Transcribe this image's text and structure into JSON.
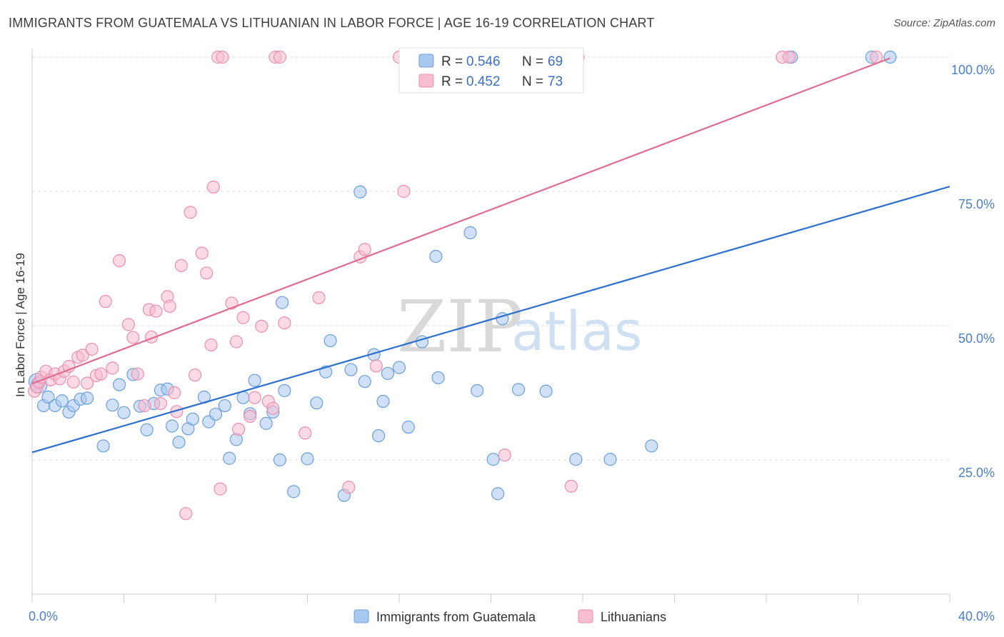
{
  "title": "IMMIGRANTS FROM GUATEMALA VS LITHUANIAN IN LABOR FORCE | AGE 16-19 CORRELATION CHART",
  "source": "Source: ZipAtlas.com",
  "watermark": {
    "part1": "ZIP",
    "part2": "atlas"
  },
  "colors": {
    "blue_fill": "#a9c8f0",
    "blue_stroke": "#6b9fdc",
    "blue_line": "#2b6fcf",
    "pink_fill": "#f7bcd0",
    "pink_stroke": "#ec8fae",
    "pink_line": "#e06b94",
    "grid": "#dddddd",
    "axis_text": "#4a7fc9"
  },
  "legend": {
    "rows": [
      {
        "r_label": "R = ",
        "r_value": "0.546",
        "n_label": "N = ",
        "n_value": "69"
      },
      {
        "r_label": "R = ",
        "r_value": "0.452",
        "n_label": "N = ",
        "n_value": "73"
      }
    ]
  },
  "chart_data": {
    "type": "scatter",
    "xlabel": "",
    "ylabel": "In Labor Force | Age 16-19",
    "xlim": [
      0,
      40
    ],
    "ylim": [
      0,
      100
    ],
    "x_tick_labels": [
      {
        "value": 0,
        "label": "0.0%"
      },
      {
        "value": 40,
        "label": "40.0%"
      }
    ],
    "y_tick_labels": [
      {
        "value": 25,
        "label": "25.0%"
      },
      {
        "value": 50,
        "label": "50.0%"
      },
      {
        "value": 75,
        "label": "75.0%"
      },
      {
        "value": 100,
        "label": "100.0%"
      }
    ],
    "grid": true,
    "legend_position": "top-center",
    "series": [
      {
        "name": "Immigrants from Guatemala",
        "color": "#a9c8f0",
        "trend": {
          "x": [
            0,
            40
          ],
          "y": [
            26.4,
            75.9
          ]
        },
        "points": [
          [
            0.2,
            39.6
          ],
          [
            0.3,
            38.9
          ],
          [
            0.5,
            35.1
          ],
          [
            0.7,
            36.7
          ],
          [
            1.0,
            35.1
          ],
          [
            1.3,
            36.0
          ],
          [
            1.6,
            33.9
          ],
          [
            1.8,
            35.1
          ],
          [
            2.1,
            36.3
          ],
          [
            2.4,
            36.5
          ],
          [
            3.1,
            27.6
          ],
          [
            3.5,
            35.2
          ],
          [
            3.8,
            39.0
          ],
          [
            4.0,
            33.8
          ],
          [
            4.4,
            40.9
          ],
          [
            4.7,
            35.0
          ],
          [
            5.0,
            30.6
          ],
          [
            5.3,
            35.5
          ],
          [
            5.6,
            38.0
          ],
          [
            5.9,
            38.2
          ],
          [
            6.1,
            31.3
          ],
          [
            6.4,
            28.3
          ],
          [
            6.8,
            30.8
          ],
          [
            7.0,
            32.6
          ],
          [
            7.5,
            36.7
          ],
          [
            7.7,
            32.1
          ],
          [
            8.0,
            33.5
          ],
          [
            8.4,
            35.1
          ],
          [
            8.6,
            25.3
          ],
          [
            8.9,
            28.8
          ],
          [
            9.2,
            36.6
          ],
          [
            9.5,
            33.6
          ],
          [
            9.7,
            39.8
          ],
          [
            10.2,
            31.8
          ],
          [
            10.5,
            33.9
          ],
          [
            10.8,
            25.0
          ],
          [
            10.9,
            54.3
          ],
          [
            11.0,
            37.9
          ],
          [
            11.4,
            19.1
          ],
          [
            12.0,
            25.2
          ],
          [
            12.4,
            35.6
          ],
          [
            13.0,
            47.2
          ],
          [
            12.8,
            41.4
          ],
          [
            13.6,
            18.4
          ],
          [
            13.9,
            41.8
          ],
          [
            14.3,
            74.9
          ],
          [
            14.5,
            39.6
          ],
          [
            14.9,
            44.6
          ],
          [
            15.1,
            29.5
          ],
          [
            15.3,
            35.9
          ],
          [
            15.5,
            41.1
          ],
          [
            16.0,
            42.2
          ],
          [
            16.4,
            31.1
          ],
          [
            17.0,
            47.0
          ],
          [
            17.6,
            62.9
          ],
          [
            17.7,
            40.3
          ],
          [
            19.1,
            67.3
          ],
          [
            19.4,
            37.9
          ],
          [
            20.1,
            25.1
          ],
          [
            20.3,
            18.7
          ],
          [
            20.5,
            51.3
          ],
          [
            21.2,
            38.1
          ],
          [
            22.4,
            37.8
          ],
          [
            23.7,
            25.1
          ],
          [
            25.2,
            25.1
          ],
          [
            27.0,
            27.6
          ],
          [
            33.1,
            100
          ],
          [
            36.6,
            100
          ],
          [
            37.4,
            100
          ]
        ]
      },
      {
        "name": "Lithuanians",
        "color": "#f7bcd0",
        "trend": {
          "x": [
            0,
            37.4
          ],
          "y": [
            39.2,
            99.8
          ]
        },
        "points": [
          [
            0.1,
            37.8
          ],
          [
            0.2,
            38.6
          ],
          [
            0.3,
            39.5
          ],
          [
            0.4,
            40.4
          ],
          [
            0.6,
            41.5
          ],
          [
            0.8,
            39.9
          ],
          [
            1.0,
            41.0
          ],
          [
            1.2,
            40.1
          ],
          [
            1.4,
            41.5
          ],
          [
            1.6,
            42.4
          ],
          [
            1.8,
            39.5
          ],
          [
            2.0,
            44.1
          ],
          [
            2.2,
            44.5
          ],
          [
            2.4,
            39.3
          ],
          [
            2.6,
            45.6
          ],
          [
            2.8,
            40.7
          ],
          [
            3.0,
            41.0
          ],
          [
            3.2,
            54.5
          ],
          [
            3.5,
            42.1
          ],
          [
            3.8,
            62.1
          ],
          [
            4.2,
            50.2
          ],
          [
            4.4,
            47.8
          ],
          [
            4.6,
            41.0
          ],
          [
            4.9,
            35.1
          ],
          [
            5.1,
            53.0
          ],
          [
            5.2,
            47.9
          ],
          [
            5.4,
            52.7
          ],
          [
            5.6,
            35.5
          ],
          [
            5.9,
            55.4
          ],
          [
            6.0,
            53.6
          ],
          [
            6.2,
            37.5
          ],
          [
            6.3,
            34.0
          ],
          [
            6.5,
            61.2
          ],
          [
            6.7,
            15.0
          ],
          [
            6.9,
            71.1
          ],
          [
            7.1,
            40.8
          ],
          [
            7.4,
            63.5
          ],
          [
            7.6,
            59.8
          ],
          [
            7.8,
            46.4
          ],
          [
            7.9,
            75.8
          ],
          [
            8.1,
            100
          ],
          [
            8.2,
            19.6
          ],
          [
            8.3,
            100
          ],
          [
            8.7,
            54.2
          ],
          [
            8.9,
            47.0
          ],
          [
            9.0,
            30.7
          ],
          [
            9.2,
            51.5
          ],
          [
            9.5,
            33.1
          ],
          [
            9.7,
            36.6
          ],
          [
            10.0,
            49.9
          ],
          [
            10.3,
            35.9
          ],
          [
            10.5,
            34.6
          ],
          [
            10.6,
            100
          ],
          [
            10.8,
            100
          ],
          [
            11.0,
            50.5
          ],
          [
            11.9,
            30.0
          ],
          [
            12.5,
            55.2
          ],
          [
            13.8,
            19.9
          ],
          [
            14.3,
            62.8
          ],
          [
            14.5,
            64.2
          ],
          [
            15.0,
            42.5
          ],
          [
            16.0,
            100
          ],
          [
            16.2,
            75.0
          ],
          [
            18.2,
            100
          ],
          [
            19.0,
            100
          ],
          [
            20.6,
            25.9
          ],
          [
            22.0,
            100
          ],
          [
            22.8,
            100
          ],
          [
            23.5,
            20.1
          ],
          [
            23.8,
            100
          ],
          [
            32.7,
            100
          ],
          [
            33.0,
            100
          ],
          [
            36.8,
            100
          ]
        ]
      }
    ]
  }
}
